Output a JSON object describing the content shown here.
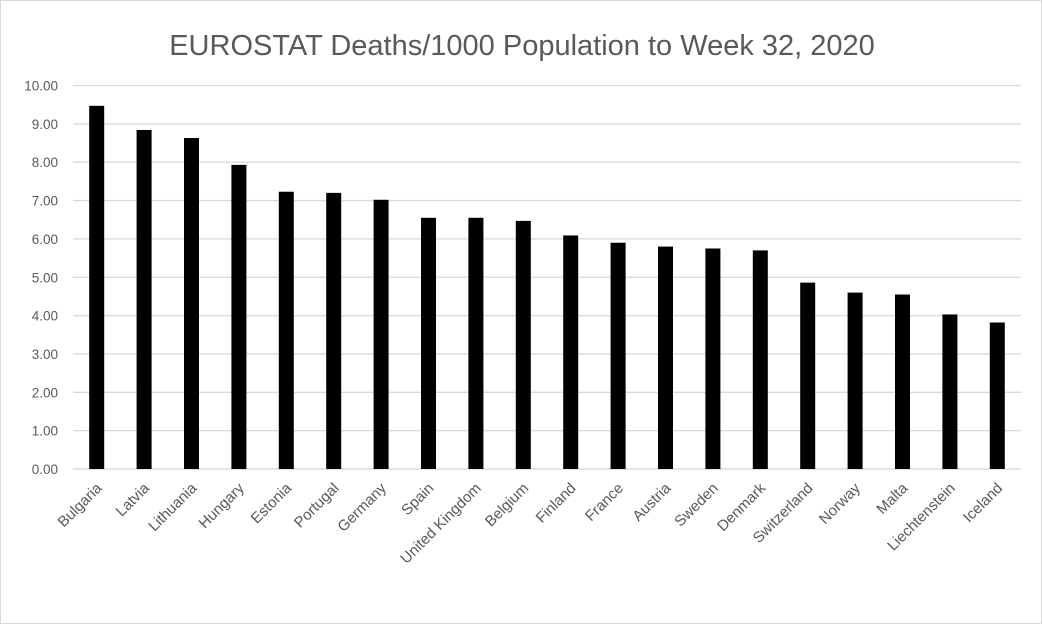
{
  "chart_data": {
    "type": "bar",
    "title": "EUROSTAT Deaths/1000 Population to Week 32, 2020",
    "xlabel": "",
    "ylabel": "",
    "ylim": [
      0,
      10
    ],
    "yticks": [
      "0.00",
      "1.00",
      "2.00",
      "3.00",
      "4.00",
      "5.00",
      "6.00",
      "7.00",
      "8.00",
      "9.00",
      "10.00"
    ],
    "grid": true,
    "legend": "none",
    "bar_color": "#000000",
    "categories": [
      "Bulgaria",
      "Latvia",
      "Lithuania",
      "Hungary",
      "Estonia",
      "Portugal",
      "Germany",
      "Spain",
      "United Kingdom",
      "Belgium",
      "Finland",
      "France",
      "Austria",
      "Sweden",
      "Denmark",
      "Switzerland",
      "Norway",
      "Malta",
      "Liechtenstein",
      "Iceland"
    ],
    "values": [
      9.47,
      8.84,
      8.63,
      7.93,
      7.23,
      7.2,
      7.02,
      6.55,
      6.55,
      6.47,
      6.09,
      5.9,
      5.8,
      5.75,
      5.7,
      4.86,
      4.6,
      4.55,
      4.03,
      3.82
    ]
  }
}
